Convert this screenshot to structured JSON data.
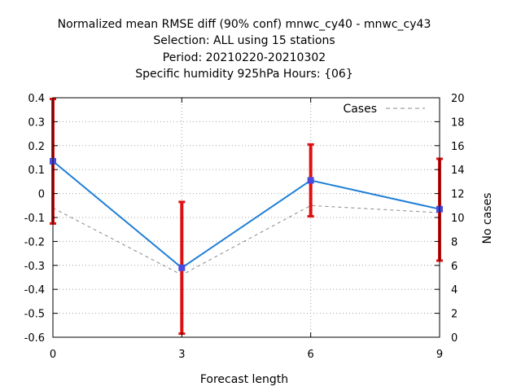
{
  "chart_data": {
    "type": "line",
    "title_lines": [
      "Normalized mean RMSE diff (90% conf) mnwc_cy40 - mnwc_cy43",
      "Selection: ALL using    15 stations",
      "Period: 20210220-20210302",
      "Specific humidity 925hPa   Hours: {06}"
    ],
    "xlabel": "Forecast length",
    "ylabel": "",
    "y2label": "No cases",
    "x": [
      0,
      3,
      6,
      9
    ],
    "xlim": [
      0,
      9
    ],
    "ylim": [
      -0.6,
      0.4
    ],
    "y2lim": [
      0,
      20
    ],
    "x_ticks": [
      0,
      3,
      6,
      9
    ],
    "y_ticks": [
      -0.6,
      -0.5,
      -0.4,
      -0.3,
      -0.2,
      -0.1,
      0,
      0.1,
      0.2,
      0.3,
      0.4
    ],
    "y2_ticks": [
      0,
      2,
      4,
      6,
      8,
      10,
      12,
      14,
      16,
      18,
      20
    ],
    "grid": true,
    "legend_position": "top-right",
    "series": [
      {
        "values": [
          0.135,
          -0.31,
          0.055,
          -0.065
        ],
        "color": "#1f7fd6",
        "marker_color": "#4a4adf",
        "error_low": [
          -0.125,
          -0.585,
          -0.095,
          -0.28
        ],
        "error_high": [
          0.395,
          -0.035,
          0.205,
          0.145
        ],
        "error_color": "#dd1111"
      },
      {
        "name": "Cases",
        "axis": "y2",
        "values": [
          10.8,
          5.2,
          11.0,
          10.4
        ],
        "color": "#888888",
        "dashed": true
      }
    ]
  }
}
